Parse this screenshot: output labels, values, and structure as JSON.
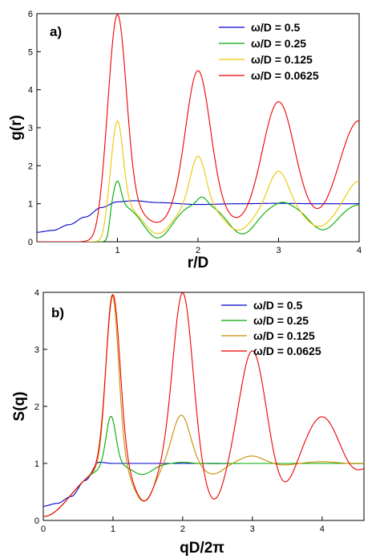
{
  "chart_data": [
    {
      "type": "line",
      "panel_label": "a)",
      "xlabel": "r/D",
      "ylabel": "g(r)",
      "xlim": [
        0,
        4
      ],
      "ylim": [
        0,
        6
      ],
      "x_ticks": [
        1,
        2,
        3,
        4
      ],
      "y_ticks": [
        0,
        1,
        2,
        3,
        4,
        5,
        6
      ],
      "legend_placement": "top-right",
      "series": [
        {
          "name": "ω/D = 0.5",
          "color": "#0000cc",
          "x": [
            0,
            0.2,
            0.4,
            0.6,
            0.8,
            1.0,
            1.2,
            1.5,
            2.0,
            2.5,
            3.0,
            3.5,
            4.0
          ],
          "y": [
            0.25,
            0.3,
            0.45,
            0.65,
            0.9,
            1.05,
            1.08,
            1.03,
            0.98,
            1.0,
            1.01,
            1.0,
            1.0
          ]
        },
        {
          "name": "ω/D = 0.25",
          "color": "#00aa00",
          "peaks": {
            "centers": [
              1.0,
              2.05,
              3.05,
              4.0
            ],
            "heights": [
              1.62,
              1.2,
              1.07,
              1.02
            ]
          }
        },
        {
          "name": "ω/D = 0.125",
          "color": "#e8c800",
          "peaks": {
            "centers": [
              1.0,
              2.0,
              3.0,
              4.0
            ],
            "heights": [
              3.2,
              2.28,
              1.88,
              1.62
            ]
          }
        },
        {
          "name": "ω/D = 0.0625",
          "color": "#ee0000",
          "peaks": {
            "centers": [
              1.0,
              2.0,
              3.0,
              4.0
            ],
            "heights": [
              6.0,
              4.52,
              3.7,
              3.2
            ]
          }
        }
      ]
    },
    {
      "type": "line",
      "panel_label": "b)",
      "xlabel": "qD/2π",
      "ylabel": "S(q)",
      "xlim": [
        0,
        4.6
      ],
      "ylim": [
        0,
        4
      ],
      "x_ticks": [
        0,
        1,
        2,
        3,
        4
      ],
      "y_ticks": [
        0,
        1,
        2,
        3,
        4
      ],
      "legend_placement": "top-right",
      "series": [
        {
          "name": "ω/D = 0.5",
          "color": "#0000cc",
          "x": [
            0,
            0.2,
            0.4,
            0.6,
            0.8,
            1.0,
            1.2,
            1.5,
            2.0,
            2.5,
            3.0,
            3.5,
            4.0,
            4.6
          ],
          "y": [
            0.25,
            0.3,
            0.42,
            0.7,
            1.02,
            1.0,
            1.0,
            1.0,
            1.0,
            1.0,
            1.0,
            1.0,
            1.0,
            1.0
          ]
        },
        {
          "name": "ω/D = 0.25",
          "color": "#00aa00",
          "peaks": {
            "centers": [
              0.97,
              2.0
            ],
            "heights": [
              1.87,
              1.02
            ]
          }
        },
        {
          "name": "ω/D = 0.125",
          "color": "#c88a00",
          "peaks": {
            "centers": [
              0.99,
              1.98,
              2.99,
              4.0
            ],
            "heights": [
              4.0,
              1.85,
              1.13,
              1.03
            ]
          }
        },
        {
          "name": "ω/D = 0.0625",
          "color": "#ee0000",
          "peaks": {
            "centers": [
              1.0,
              2.0,
              3.0,
              4.0
            ],
            "heights": [
              4.0,
              4.0,
              2.98,
              1.82
            ]
          }
        }
      ]
    }
  ]
}
